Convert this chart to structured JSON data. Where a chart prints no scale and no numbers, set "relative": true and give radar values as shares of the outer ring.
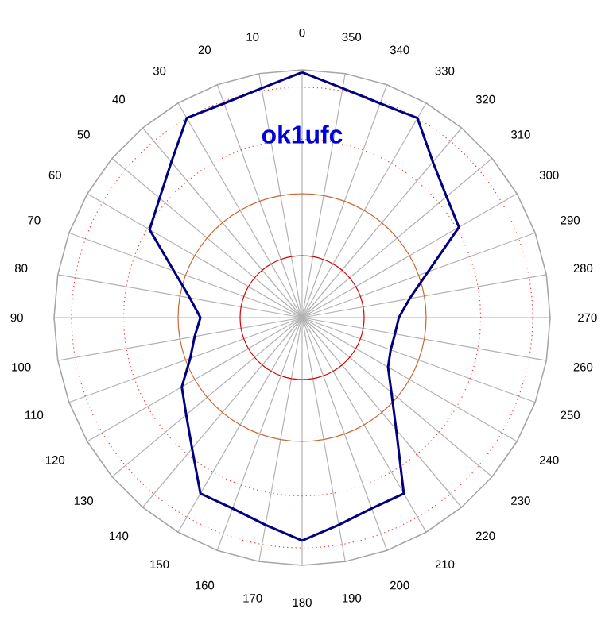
{
  "chart_data": {
    "type": "radar",
    "title": "ok1ufc",
    "relative": true,
    "grid": true,
    "categories": [
      "0",
      "350",
      "340",
      "330",
      "320",
      "310",
      "300",
      "290",
      "280",
      "270",
      "260",
      "250",
      "240",
      "230",
      "220",
      "210",
      "200",
      "190",
      "180",
      "170",
      "160",
      "150",
      "140",
      "130",
      "120",
      "110",
      "100",
      "90",
      "80",
      "70",
      "60",
      "50",
      "40",
      "30",
      "20",
      "10"
    ],
    "series": [
      {
        "color": "#000080",
        "values": [
          0.99,
          0.94,
          0.92,
          0.93,
          0.82,
          0.76,
          0.73,
          0.54,
          0.44,
          0.39,
          0.38,
          0.38,
          0.4,
          0.47,
          0.59,
          0.82,
          0.82,
          0.85,
          0.9,
          0.85,
          0.82,
          0.82,
          0.69,
          0.61,
          0.56,
          0.48,
          0.44,
          0.41,
          0.46,
          0.55,
          0.71,
          0.75,
          0.82,
          0.93,
          0.92,
          0.94
        ]
      }
    ]
  }
}
